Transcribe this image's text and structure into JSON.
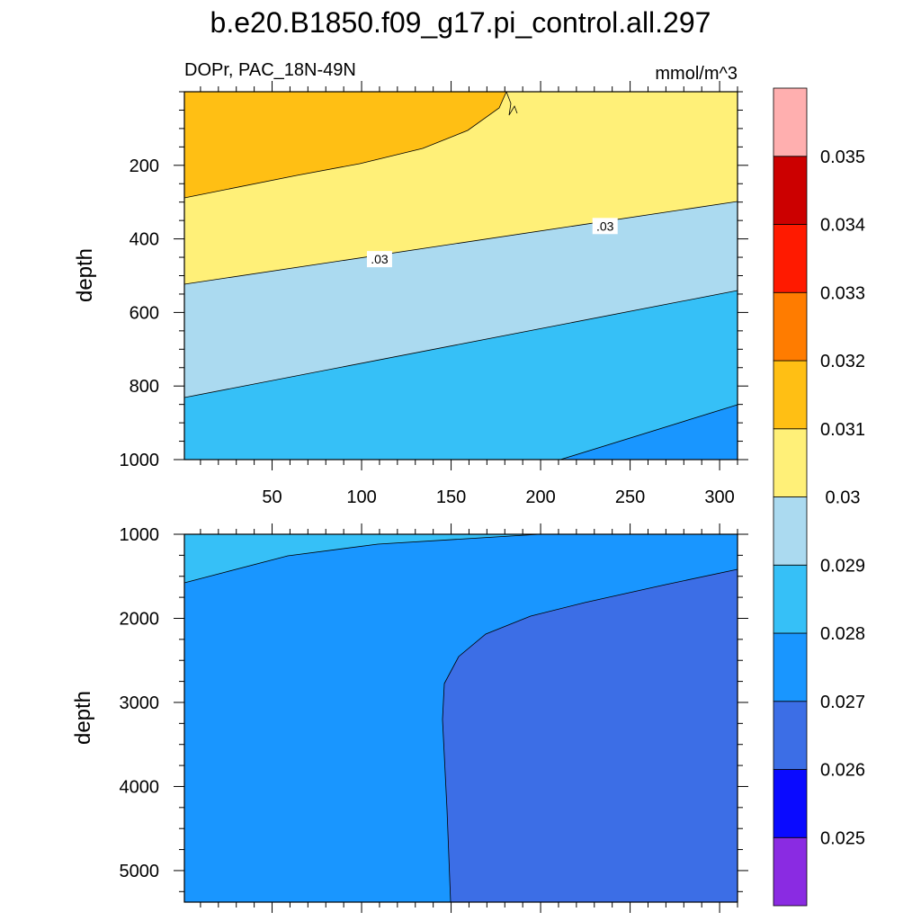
{
  "chart_data": {
    "type": "contour",
    "title": "b.e20.B1850.f09_g17.pi_control.all.297",
    "subtitle_left": "DOPr, PAC_18N-49N",
    "units": "mmol/m^3",
    "x_range": [
      1,
      310
    ],
    "x_ticks": [
      "50",
      "100",
      "150",
      "200",
      "250",
      "300"
    ],
    "colorbar": {
      "levels": [
        "0.025",
        "0.026",
        "0.027",
        "0.028",
        "0.029",
        "0.03",
        "0.031",
        "0.032",
        "0.033",
        "0.034",
        "0.035"
      ],
      "colors": [
        "#8a2be2",
        "#0a0aff",
        "#3c6ee6",
        "#1996ff",
        "#36c0f7",
        "#abdaf0",
        "#fff078",
        "#ffbf14",
        "#ff7c00",
        "#ff1a00",
        "#cc0000",
        "#ffafaf"
      ]
    },
    "panels": [
      {
        "ylabel": "depth",
        "y_range": [
          0,
          1000
        ],
        "y_reversed": true,
        "y_ticks": [
          "200",
          "400",
          "600",
          "800",
          "1000"
        ],
        "y_tick_values": [
          200,
          400,
          600,
          800,
          1000
        ],
        "contour_labels": [
          {
            "text": ".03",
            "x": 110,
            "y": 455
          },
          {
            "text": ".03",
            "x": 236,
            "y": 365
          }
        ],
        "boundaries": [
          {
            "level": 0.031,
            "points": [
              [
                1,
                285
              ],
              [
                180,
                0
              ]
            ]
          },
          {
            "level": 0.03,
            "points": [
              [
                1,
                520
              ],
              [
                310,
                300
              ]
            ]
          },
          {
            "level": 0.029,
            "points": [
              [
                1,
                830
              ],
              [
                310,
                540
              ]
            ]
          },
          {
            "level": 0.028,
            "points": [
              [
                210,
                1000
              ],
              [
                310,
                850
              ]
            ]
          }
        ]
      },
      {
        "ylabel": "depth",
        "y_range": [
          1000,
          5375
        ],
        "y_reversed": true,
        "y_ticks": [
          "1000",
          "2000",
          "3000",
          "4000",
          "5000"
        ],
        "y_tick_values": [
          1000,
          2000,
          3000,
          4000,
          5000
        ],
        "boundaries": [
          {
            "level": 0.028,
            "points": [
              [
                1,
                1560
              ],
              [
                200,
                1000
              ]
            ]
          },
          {
            "level": 0.027,
            "points": [
              [
                150,
                5375
              ],
              [
                145,
                3000
              ],
              [
                310,
                1430
              ]
            ]
          }
        ]
      }
    ]
  }
}
